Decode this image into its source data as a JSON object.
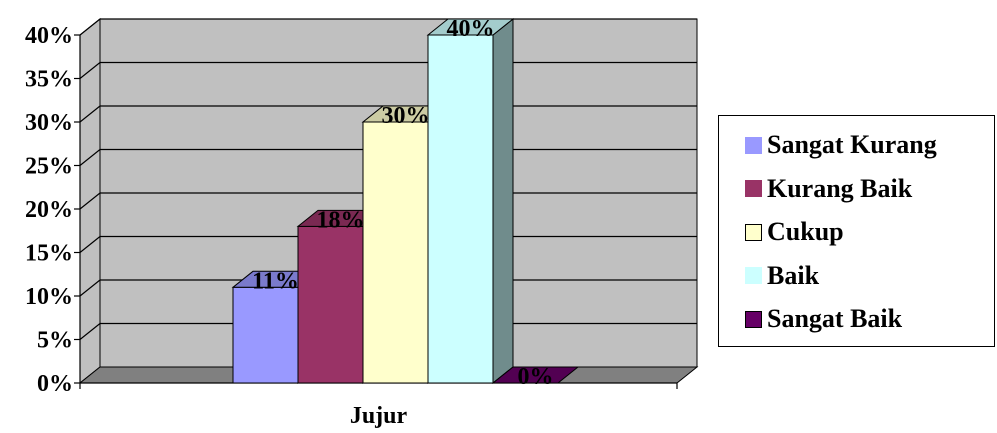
{
  "chart_data": {
    "type": "bar",
    "style": "3d-clustered",
    "categories": [
      "Jujur"
    ],
    "series": [
      {
        "name": "Sangat Kurang",
        "values": [
          11
        ],
        "label": "11%",
        "color": "#9999FF"
      },
      {
        "name": "Kurang Baik",
        "values": [
          18
        ],
        "label": "18%",
        "color": "#993366"
      },
      {
        "name": "Cukup",
        "values": [
          30
        ],
        "label": "30%",
        "color": "#FFFFCC"
      },
      {
        "name": "Baik",
        "values": [
          40
        ],
        "label": "40%",
        "color": "#CCFFFF"
      },
      {
        "name": "Sangat Baik",
        "values": [
          0
        ],
        "label": "0%",
        "color": "#660066"
      }
    ],
    "yticks": [
      "0%",
      "5%",
      "10%",
      "15%",
      "20%",
      "25%",
      "30%",
      "35%",
      "40%"
    ],
    "ylim": [
      0,
      40
    ],
    "ystep": 5,
    "xlabel": "",
    "ylabel": "",
    "grid": true,
    "legend_position": "right",
    "wall_color": "#C0C0C0",
    "floor_color": "#808080"
  }
}
